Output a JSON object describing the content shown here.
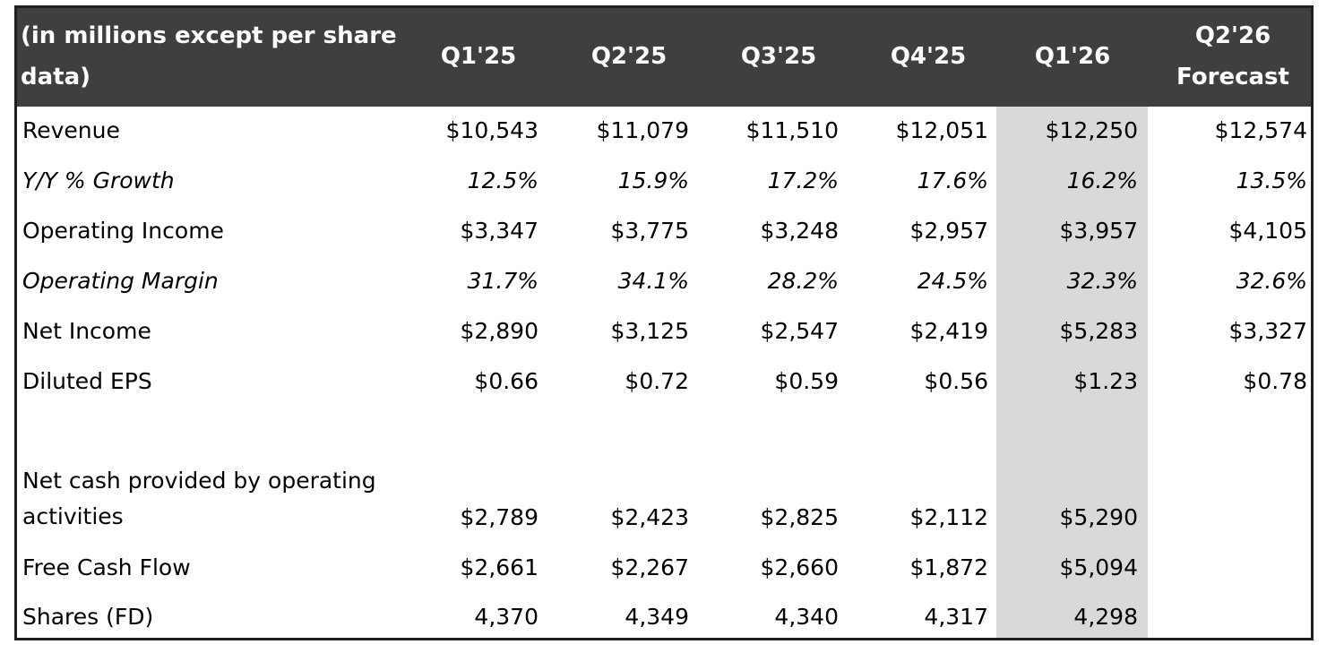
{
  "table": {
    "header": {
      "label": "(in millions except per share data)",
      "columns": [
        "Q1'25",
        "Q2'25",
        "Q3'25",
        "Q4'25",
        "Q1'26",
        "Q2'26 Forecast"
      ]
    },
    "highlight_color": "#d9d9d9",
    "header_color": "#3f3f3f",
    "rows": [
      {
        "label": "Revenue",
        "values": [
          "$10,543",
          "$11,079",
          "$11,510",
          "$12,051",
          "$12,250",
          "$12,574"
        ]
      },
      {
        "label": "Y/Y % Growth",
        "values": [
          "12.5%",
          "15.9%",
          "17.2%",
          "17.6%",
          "16.2%",
          "13.5%"
        ]
      },
      {
        "label": "Operating Income",
        "values": [
          "$3,347",
          "$3,775",
          "$3,248",
          "$2,957",
          "$3,957",
          "$4,105"
        ]
      },
      {
        "label": "Operating Margin",
        "values": [
          "31.7%",
          "34.1%",
          "28.2%",
          "24.5%",
          "32.3%",
          "32.6%"
        ]
      },
      {
        "label": "Net Income",
        "values": [
          "$2,890",
          "$3,125",
          "$2,547",
          "$2,419",
          "$5,283",
          "$3,327"
        ]
      },
      {
        "label": "Diluted EPS",
        "values": [
          "$0.66",
          "$0.72",
          "$0.59",
          "$0.56",
          "$1.23",
          "$0.78"
        ]
      },
      {
        "label": "Net cash provided by operating activities",
        "values": [
          "$2,789",
          "$2,423",
          "$2,825",
          "$2,112",
          "$5,290",
          ""
        ]
      },
      {
        "label": "Free Cash Flow",
        "values": [
          "$2,661",
          "$2,267",
          "$2,660",
          "$1,872",
          "$5,094",
          ""
        ]
      },
      {
        "label": "Shares (FD)",
        "values": [
          "4,370",
          "4,349",
          "4,340",
          "4,317",
          "4,298",
          ""
        ]
      }
    ]
  }
}
